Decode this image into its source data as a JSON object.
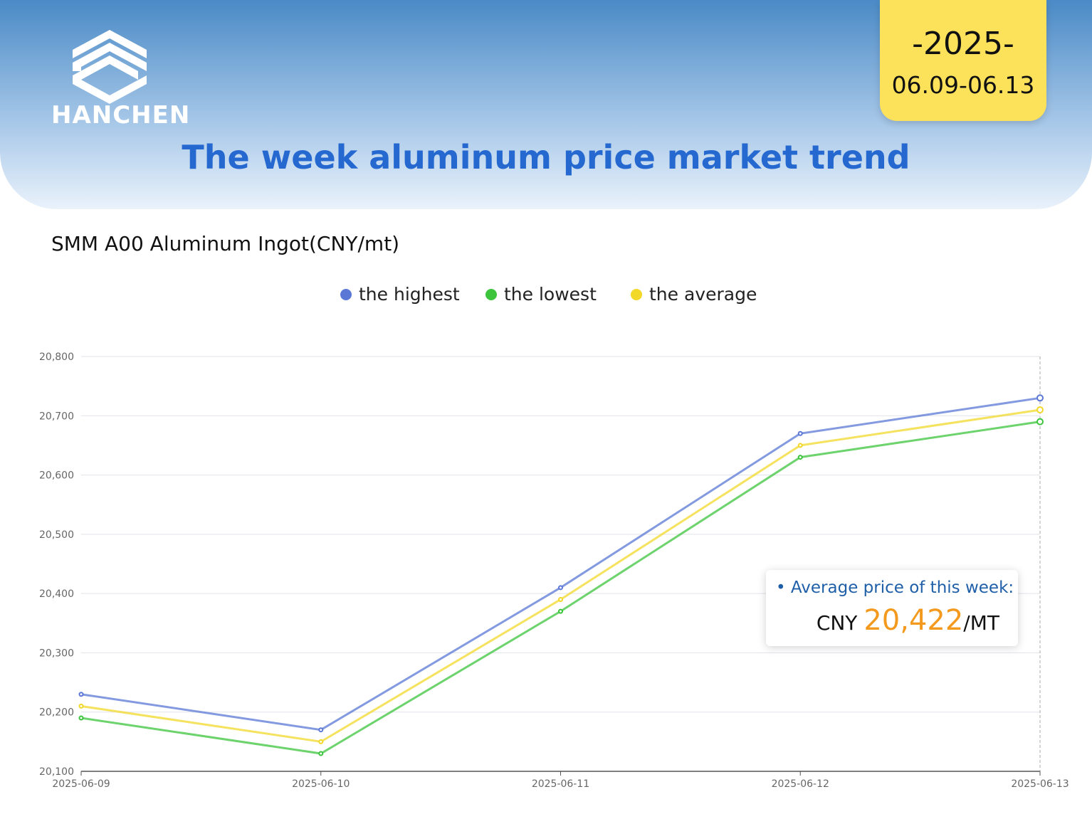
{
  "header": {
    "logo_text": "HANCHEN",
    "year": "-2025-",
    "date_range": "06.09-06.13",
    "title": "The week aluminum price market trend"
  },
  "chart_data": {
    "type": "line",
    "title": "SMM A00 Aluminum Ingot(CNY/mt)",
    "categories": [
      "2025-06-09",
      "2025-06-10",
      "2025-06-11",
      "2025-06-12",
      "2025-06-13"
    ],
    "series": [
      {
        "name": "the highest",
        "color": "#5b78d6",
        "values": [
          20230,
          20170,
          20410,
          20670,
          20730
        ]
      },
      {
        "name": "the lowest",
        "color": "#3cc43c",
        "values": [
          20190,
          20130,
          20370,
          20630,
          20690
        ]
      },
      {
        "name": "the average",
        "color": "#f2d829",
        "values": [
          20210,
          20150,
          20390,
          20650,
          20710
        ]
      }
    ],
    "ylim": [
      20100,
      20800
    ],
    "yticks": [
      {
        "value": 20100,
        "label": "20,100"
      },
      {
        "value": 20200,
        "label": "20,200"
      },
      {
        "value": 20300,
        "label": "20,300"
      },
      {
        "value": 20400,
        "label": "20,400"
      },
      {
        "value": 20500,
        "label": "20,500"
      },
      {
        "value": 20600,
        "label": "20,600"
      },
      {
        "value": 20700,
        "label": "20,700"
      },
      {
        "value": 20800,
        "label": "20,800"
      }
    ],
    "grid": true,
    "legend": "top",
    "annotation": {
      "label": "Average price of this week:",
      "currency": "CNY",
      "value": {
        "value": 20422,
        "label": "20,422"
      },
      "unit": "/MT"
    }
  }
}
